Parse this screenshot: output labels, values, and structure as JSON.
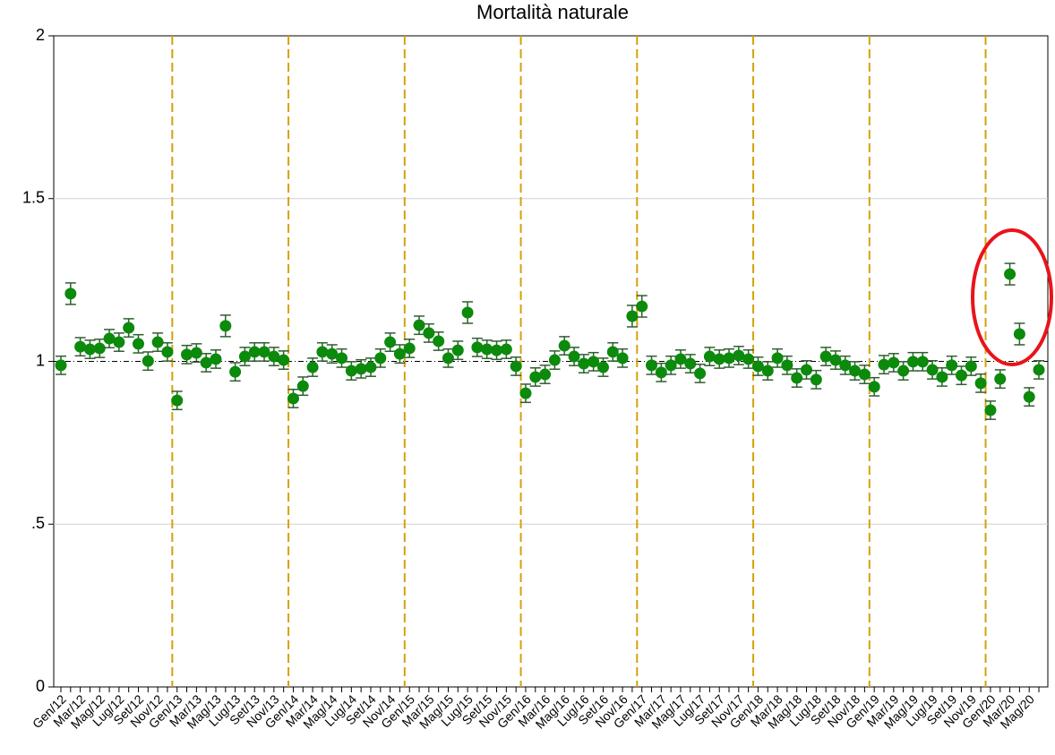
{
  "chart_data": {
    "type": "errorbar-scatter",
    "title": "Mortalità naturale",
    "categories": [
      "Gen/12",
      null,
      "Mar/12",
      null,
      "Mag/12",
      null,
      "Lug/12",
      null,
      "Set/12",
      null,
      "Nov/12",
      null,
      "Gen/13",
      null,
      "Mar/13",
      null,
      "Mag/13",
      null,
      "Lug/13",
      null,
      "Set/13",
      null,
      "Nov/13",
      null,
      "Gen/14",
      null,
      "Mar/14",
      null,
      "Mag/14",
      null,
      "Lug/14",
      null,
      "Set/14",
      null,
      "Nov/14",
      null,
      "Gen/15",
      null,
      "Mar/15",
      null,
      "Mag/15",
      null,
      "Lug/15",
      null,
      "Set/15",
      null,
      "Nov/15",
      null,
      "Gen/16",
      null,
      "Mar/16",
      null,
      "Mag/16",
      null,
      "Lug/16",
      null,
      "Set/16",
      null,
      "Nov/16",
      null,
      "Gen/17",
      null,
      "Mar/17",
      null,
      "Mag/17",
      null,
      "Lug/17",
      null,
      "Set/17",
      null,
      "Nov/17",
      null,
      "Gen/18",
      null,
      "Mar/18",
      null,
      "Mag/18",
      null,
      "Lug/18",
      null,
      "Set/18",
      null,
      "Nov/18",
      null,
      "Gen/19",
      null,
      "Mar/19",
      null,
      "Mag/19",
      null,
      "Lug/19",
      null,
      "Set/19",
      null,
      "Nov/19",
      null,
      "Gen/20",
      null,
      "Mar/20",
      null,
      "Mag/20",
      null
    ],
    "values": [
      0.988,
      1.208,
      1.045,
      1.037,
      1.04,
      1.07,
      1.059,
      1.103,
      1.054,
      1.001,
      1.059,
      1.029,
      0.88,
      1.021,
      1.026,
      0.996,
      1.007,
      1.109,
      0.968,
      1.015,
      1.029,
      1.029,
      1.015,
      1.004,
      0.886,
      0.924,
      0.982,
      1.029,
      1.023,
      1.01,
      0.971,
      0.977,
      0.982,
      1.01,
      1.059,
      1.023,
      1.04,
      1.111,
      1.087,
      1.062,
      1.01,
      1.034,
      1.15,
      1.043,
      1.037,
      1.034,
      1.037,
      0.985,
      0.902,
      0.952,
      0.96,
      1.004,
      1.048,
      1.015,
      0.993,
      0.999,
      0.982,
      1.029,
      1.01,
      1.139,
      1.169,
      0.988,
      0.966,
      0.988,
      1.007,
      0.993,
      0.963,
      1.015,
      1.007,
      1.01,
      1.018,
      1.007,
      0.985,
      0.971,
      1.01,
      0.988,
      0.949,
      0.974,
      0.944,
      1.015,
      1.004,
      0.988,
      0.971,
      0.96,
      0.922,
      0.99,
      0.996,
      0.971,
      0.999,
      0.999,
      0.974,
      0.952,
      0.988,
      0.957,
      0.985,
      0.933,
      0.85,
      0.946,
      1.268,
      1.084,
      0.891,
      0.974
    ],
    "errors": [
      0.028,
      0.033,
      0.028,
      0.028,
      0.028,
      0.028,
      0.028,
      0.028,
      0.028,
      0.028,
      0.028,
      0.028,
      0.028,
      0.028,
      0.028,
      0.028,
      0.028,
      0.033,
      0.028,
      0.028,
      0.028,
      0.028,
      0.028,
      0.028,
      0.028,
      0.028,
      0.028,
      0.028,
      0.028,
      0.028,
      0.028,
      0.028,
      0.028,
      0.028,
      0.028,
      0.028,
      0.028,
      0.028,
      0.028,
      0.028,
      0.028,
      0.028,
      0.033,
      0.028,
      0.028,
      0.028,
      0.028,
      0.028,
      0.028,
      0.028,
      0.028,
      0.028,
      0.028,
      0.028,
      0.028,
      0.028,
      0.028,
      0.028,
      0.028,
      0.033,
      0.033,
      0.028,
      0.028,
      0.028,
      0.028,
      0.028,
      0.028,
      0.028,
      0.028,
      0.028,
      0.028,
      0.028,
      0.028,
      0.028,
      0.028,
      0.028,
      0.028,
      0.028,
      0.028,
      0.028,
      0.028,
      0.028,
      0.028,
      0.028,
      0.028,
      0.028,
      0.028,
      0.028,
      0.028,
      0.028,
      0.028,
      0.028,
      0.028,
      0.028,
      0.028,
      0.028,
      0.028,
      0.028,
      0.033,
      0.033,
      0.028,
      0.028
    ],
    "color": "#0b8a0b",
    "error_color": "#2f5f2f",
    "ylim": [
      0,
      2
    ],
    "yticks": [
      0,
      {
        "value": 0.5,
        "label": ".5"
      },
      1,
      1.5,
      2
    ],
    "grid": true,
    "refline": 1,
    "vlines_at": [
      "Gen/13",
      "Gen/14",
      "Gen/15",
      "Gen/16",
      "Gen/17",
      "Gen/18",
      "Gen/19",
      "Gen/20"
    ],
    "vline_color": "#d4a20a"
  }
}
